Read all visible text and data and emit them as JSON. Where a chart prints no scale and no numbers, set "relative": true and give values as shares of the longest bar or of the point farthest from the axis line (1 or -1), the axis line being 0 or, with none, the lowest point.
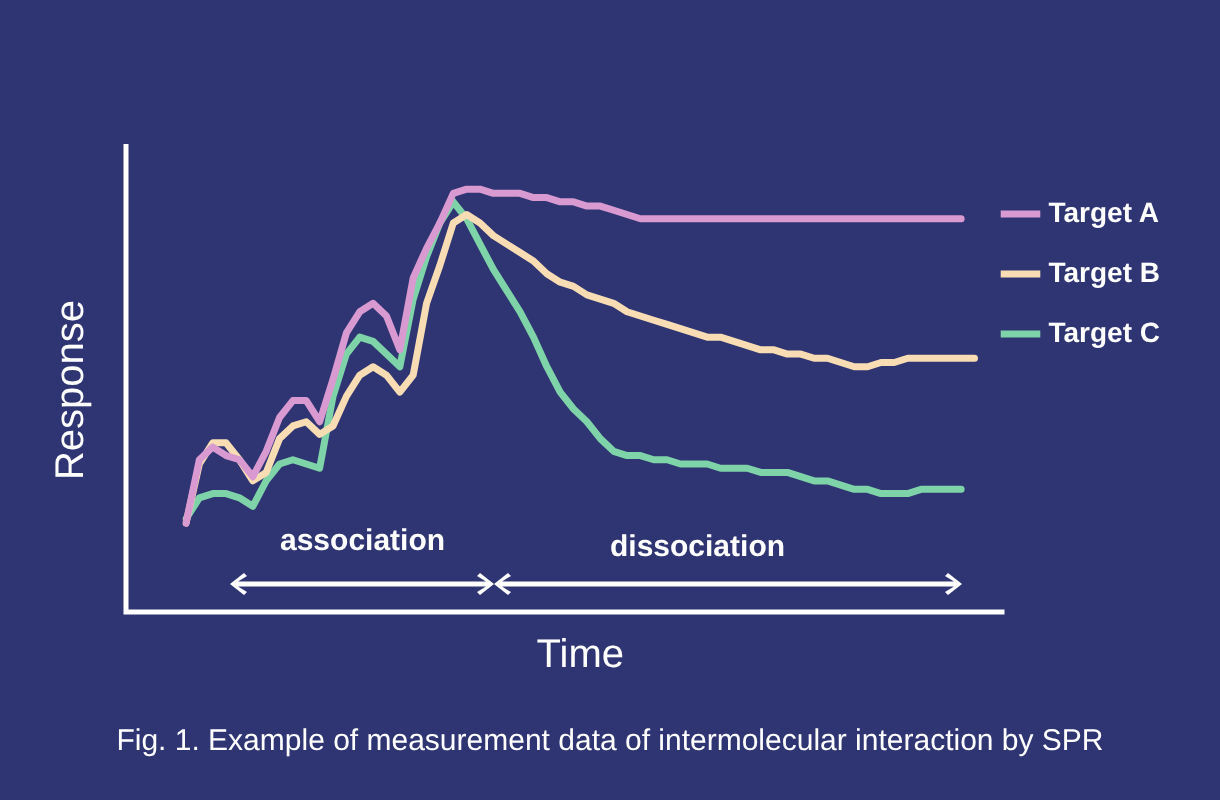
{
  "chart_data": {
    "type": "line",
    "relative": true,
    "xlabel": "Time",
    "ylabel": "Response",
    "grid": false,
    "legend": "right",
    "marker": "none",
    "line_style": "solid",
    "annotations": [
      "association",
      "dissociation",
      "Fig. 1. Example of measurement data of intermolecular interaction by SPR"
    ],
    "categories": [
      null,
      null,
      null,
      null,
      null,
      null,
      null,
      null,
      null,
      null,
      null,
      null,
      null,
      null,
      null,
      null,
      null,
      null,
      null,
      null,
      null,
      null,
      null,
      null,
      null,
      null,
      null,
      null,
      null,
      null,
      null,
      null,
      null,
      null,
      null,
      null,
      null,
      null,
      null,
      null,
      null,
      null,
      null,
      null,
      null,
      null,
      null,
      null,
      null,
      null,
      null,
      null,
      null,
      null,
      null,
      null,
      null,
      null,
      null,
      null
    ],
    "series": [
      {
        "name": "Target A",
        "color": "#d89ad0",
        "values": [
          0.21,
          0.36,
          0.39,
          0.37,
          0.36,
          0.32,
          0.38,
          0.46,
          0.5,
          0.5,
          0.45,
          0.55,
          0.66,
          0.71,
          0.73,
          0.7,
          0.62,
          0.79,
          0.86,
          0.92,
          0.99,
          1.0,
          1.0,
          0.99,
          0.99,
          0.99,
          0.98,
          0.98,
          0.97,
          0.97,
          0.96,
          0.96,
          0.95,
          0.94,
          0.93,
          0.93,
          0.93,
          0.93,
          0.93,
          0.93,
          0.93,
          0.93,
          0.93,
          0.93,
          0.93,
          0.93,
          0.93,
          0.93,
          0.93,
          0.93,
          0.93,
          0.93,
          0.93,
          0.93,
          0.93,
          0.93,
          0.93,
          0.93,
          0.93,
          null
        ]
      },
      {
        "name": "Target B",
        "color": "#f7dcb4",
        "values": [
          0.21,
          0.35,
          0.4,
          0.4,
          0.36,
          0.31,
          0.33,
          0.41,
          0.44,
          0.45,
          0.42,
          0.44,
          0.51,
          0.56,
          0.58,
          0.56,
          0.52,
          0.56,
          0.73,
          0.82,
          0.92,
          0.94,
          0.92,
          0.89,
          0.87,
          0.85,
          0.83,
          0.8,
          0.78,
          0.77,
          0.75,
          0.74,
          0.73,
          0.71,
          0.7,
          0.69,
          0.68,
          0.67,
          0.66,
          0.65,
          0.65,
          0.64,
          0.63,
          0.62,
          0.62,
          0.61,
          0.61,
          0.6,
          0.6,
          0.59,
          0.58,
          0.58,
          0.59,
          0.59,
          0.6,
          0.6,
          0.6,
          0.6,
          0.6,
          0.6
        ]
      },
      {
        "name": "Target C",
        "color": "#7fd3a8",
        "values": [
          0.22,
          0.27,
          0.28,
          0.28,
          0.27,
          0.25,
          0.31,
          0.35,
          0.36,
          0.35,
          0.34,
          0.51,
          0.61,
          0.65,
          0.64,
          0.61,
          0.58,
          0.74,
          0.84,
          0.92,
          0.97,
          0.93,
          0.87,
          0.81,
          0.76,
          0.71,
          0.65,
          0.58,
          0.52,
          0.48,
          0.45,
          0.41,
          0.38,
          0.37,
          0.37,
          0.36,
          0.36,
          0.35,
          0.35,
          0.35,
          0.34,
          0.34,
          0.34,
          0.33,
          0.33,
          0.33,
          0.32,
          0.31,
          0.31,
          0.3,
          0.29,
          0.29,
          0.28,
          0.28,
          0.28,
          0.29,
          0.29,
          0.29,
          0.29,
          null
        ]
      }
    ]
  }
}
